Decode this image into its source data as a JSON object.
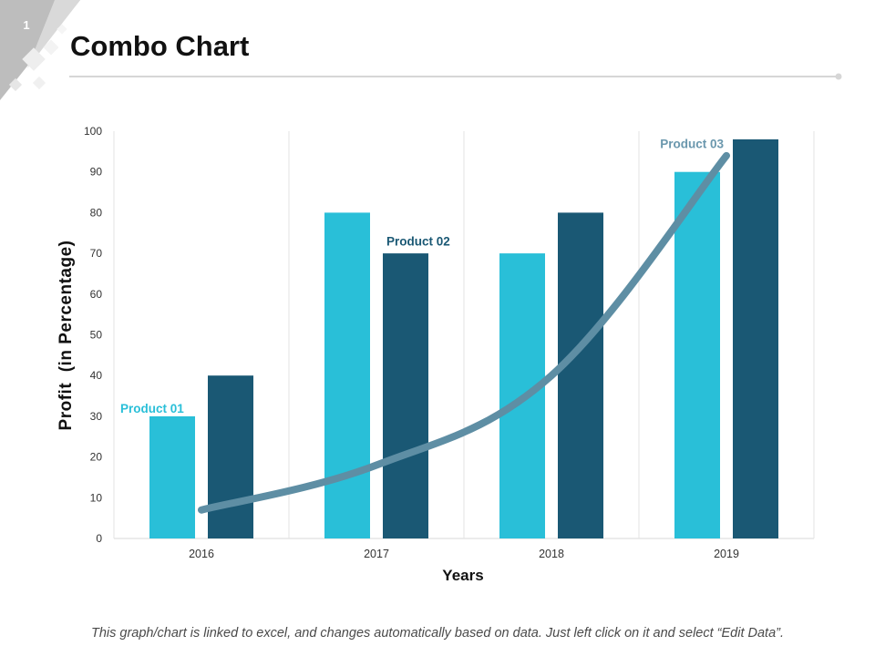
{
  "slide": {
    "number": "1",
    "title": "Combo Chart",
    "footer": "This graph/chart is linked to excel, and changes automatically based on data. Just left click on it and select “Edit Data”."
  },
  "chart_data": {
    "type": "bar",
    "categories": [
      "2016",
      "2017",
      "2018",
      "2019"
    ],
    "series": [
      {
        "values": [
          30,
          80,
          70,
          90
        ],
        "color": "#29BFD8"
      },
      {
        "values": [
          40,
          70,
          80,
          98
        ],
        "color": "#1A5874"
      }
    ],
    "line_series": {
      "type": "line",
      "values": [
        7,
        18,
        40,
        94
      ],
      "color": "#5E8EA4"
    },
    "annotations": [
      {
        "text": "Product 01",
        "x": "2016",
        "y": 32,
        "align": "start",
        "color": "#29BFD8"
      },
      {
        "text": "Product 02",
        "x": "2017",
        "y": 73,
        "align": "start",
        "color": "#1A5874"
      },
      {
        "text": "Product 03",
        "x": "2019",
        "y": 97,
        "align": "end",
        "color": "#6A97AD"
      }
    ],
    "xlabel": "Years",
    "ylabel": "Profit  (in Percentage)",
    "ylim": [
      0,
      100
    ],
    "yticks": [
      "0",
      "10",
      "20",
      "30",
      "40",
      "50",
      "60",
      "70",
      "80",
      "90",
      "100"
    ],
    "grid": "vertical",
    "legend": "none"
  }
}
